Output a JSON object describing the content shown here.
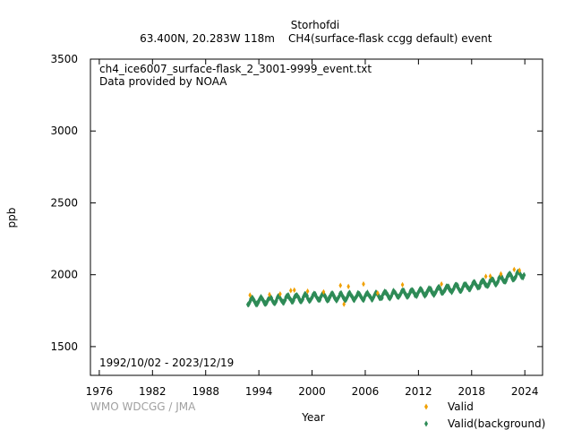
{
  "chart_data": {
    "type": "scatter",
    "title": "Storhofdi",
    "subtitle_left": "63.400N, 20.283W 118m",
    "subtitle_right": "CH4(surface-flask ccgg default) event",
    "file_label": "ch4_ice6007_surface-flask_2_3001-9999_event.txt",
    "provider_label": "Data provided by NOAA",
    "date_range": "1992/10/02 - 2023/12/19",
    "credit": "WMO WDCGG / JMA",
    "xlabel": "Year",
    "ylabel": "ppb",
    "xlim": [
      1975,
      2026
    ],
    "ylim": [
      1300,
      3500
    ],
    "xticks": [
      "1976",
      "1982",
      "1988",
      "1994",
      "2000",
      "2006",
      "2012",
      "2018",
      "2024"
    ],
    "yticks": [
      "1500",
      "2000",
      "2500",
      "3000",
      "3500"
    ],
    "grid": false,
    "legend_position": "bottom-right",
    "series": [
      {
        "name": "Valid",
        "color": "#f0a000",
        "marker": "diamond",
        "points": [
          [
            1993.0,
            1858
          ],
          [
            1995.2,
            1862
          ],
          [
            1996.4,
            1866
          ],
          [
            1997.6,
            1890
          ],
          [
            1998.0,
            1893
          ],
          [
            1999.5,
            1885
          ],
          [
            2001.3,
            1880
          ],
          [
            2003.2,
            1925
          ],
          [
            2003.6,
            1795
          ],
          [
            2004.1,
            1918
          ],
          [
            2005.8,
            1935
          ],
          [
            2007.4,
            1872
          ],
          [
            2010.2,
            1930
          ],
          [
            2014.6,
            1935
          ],
          [
            2019.6,
            1988
          ],
          [
            2020.1,
            1990
          ],
          [
            2021.3,
            2005
          ],
          [
            2022.8,
            2036
          ],
          [
            2023.4,
            2030
          ]
        ]
      },
      {
        "name": "Valid(background)",
        "color": "#2e8b57",
        "marker": "diamond",
        "trend": [
          [
            1992.75,
            1815
          ],
          [
            1994,
            1818
          ],
          [
            1996,
            1825
          ],
          [
            1998,
            1838
          ],
          [
            2000,
            1843
          ],
          [
            2002,
            1846
          ],
          [
            2004,
            1848
          ],
          [
            2006,
            1849
          ],
          [
            2008,
            1858
          ],
          [
            2010,
            1868
          ],
          [
            2012,
            1876
          ],
          [
            2014,
            1888
          ],
          [
            2016,
            1905
          ],
          [
            2018,
            1922
          ],
          [
            2020,
            1945
          ],
          [
            2022,
            1978
          ],
          [
            2023.97,
            2008
          ]
        ],
        "seasonal_amplitude": 22
      }
    ]
  }
}
